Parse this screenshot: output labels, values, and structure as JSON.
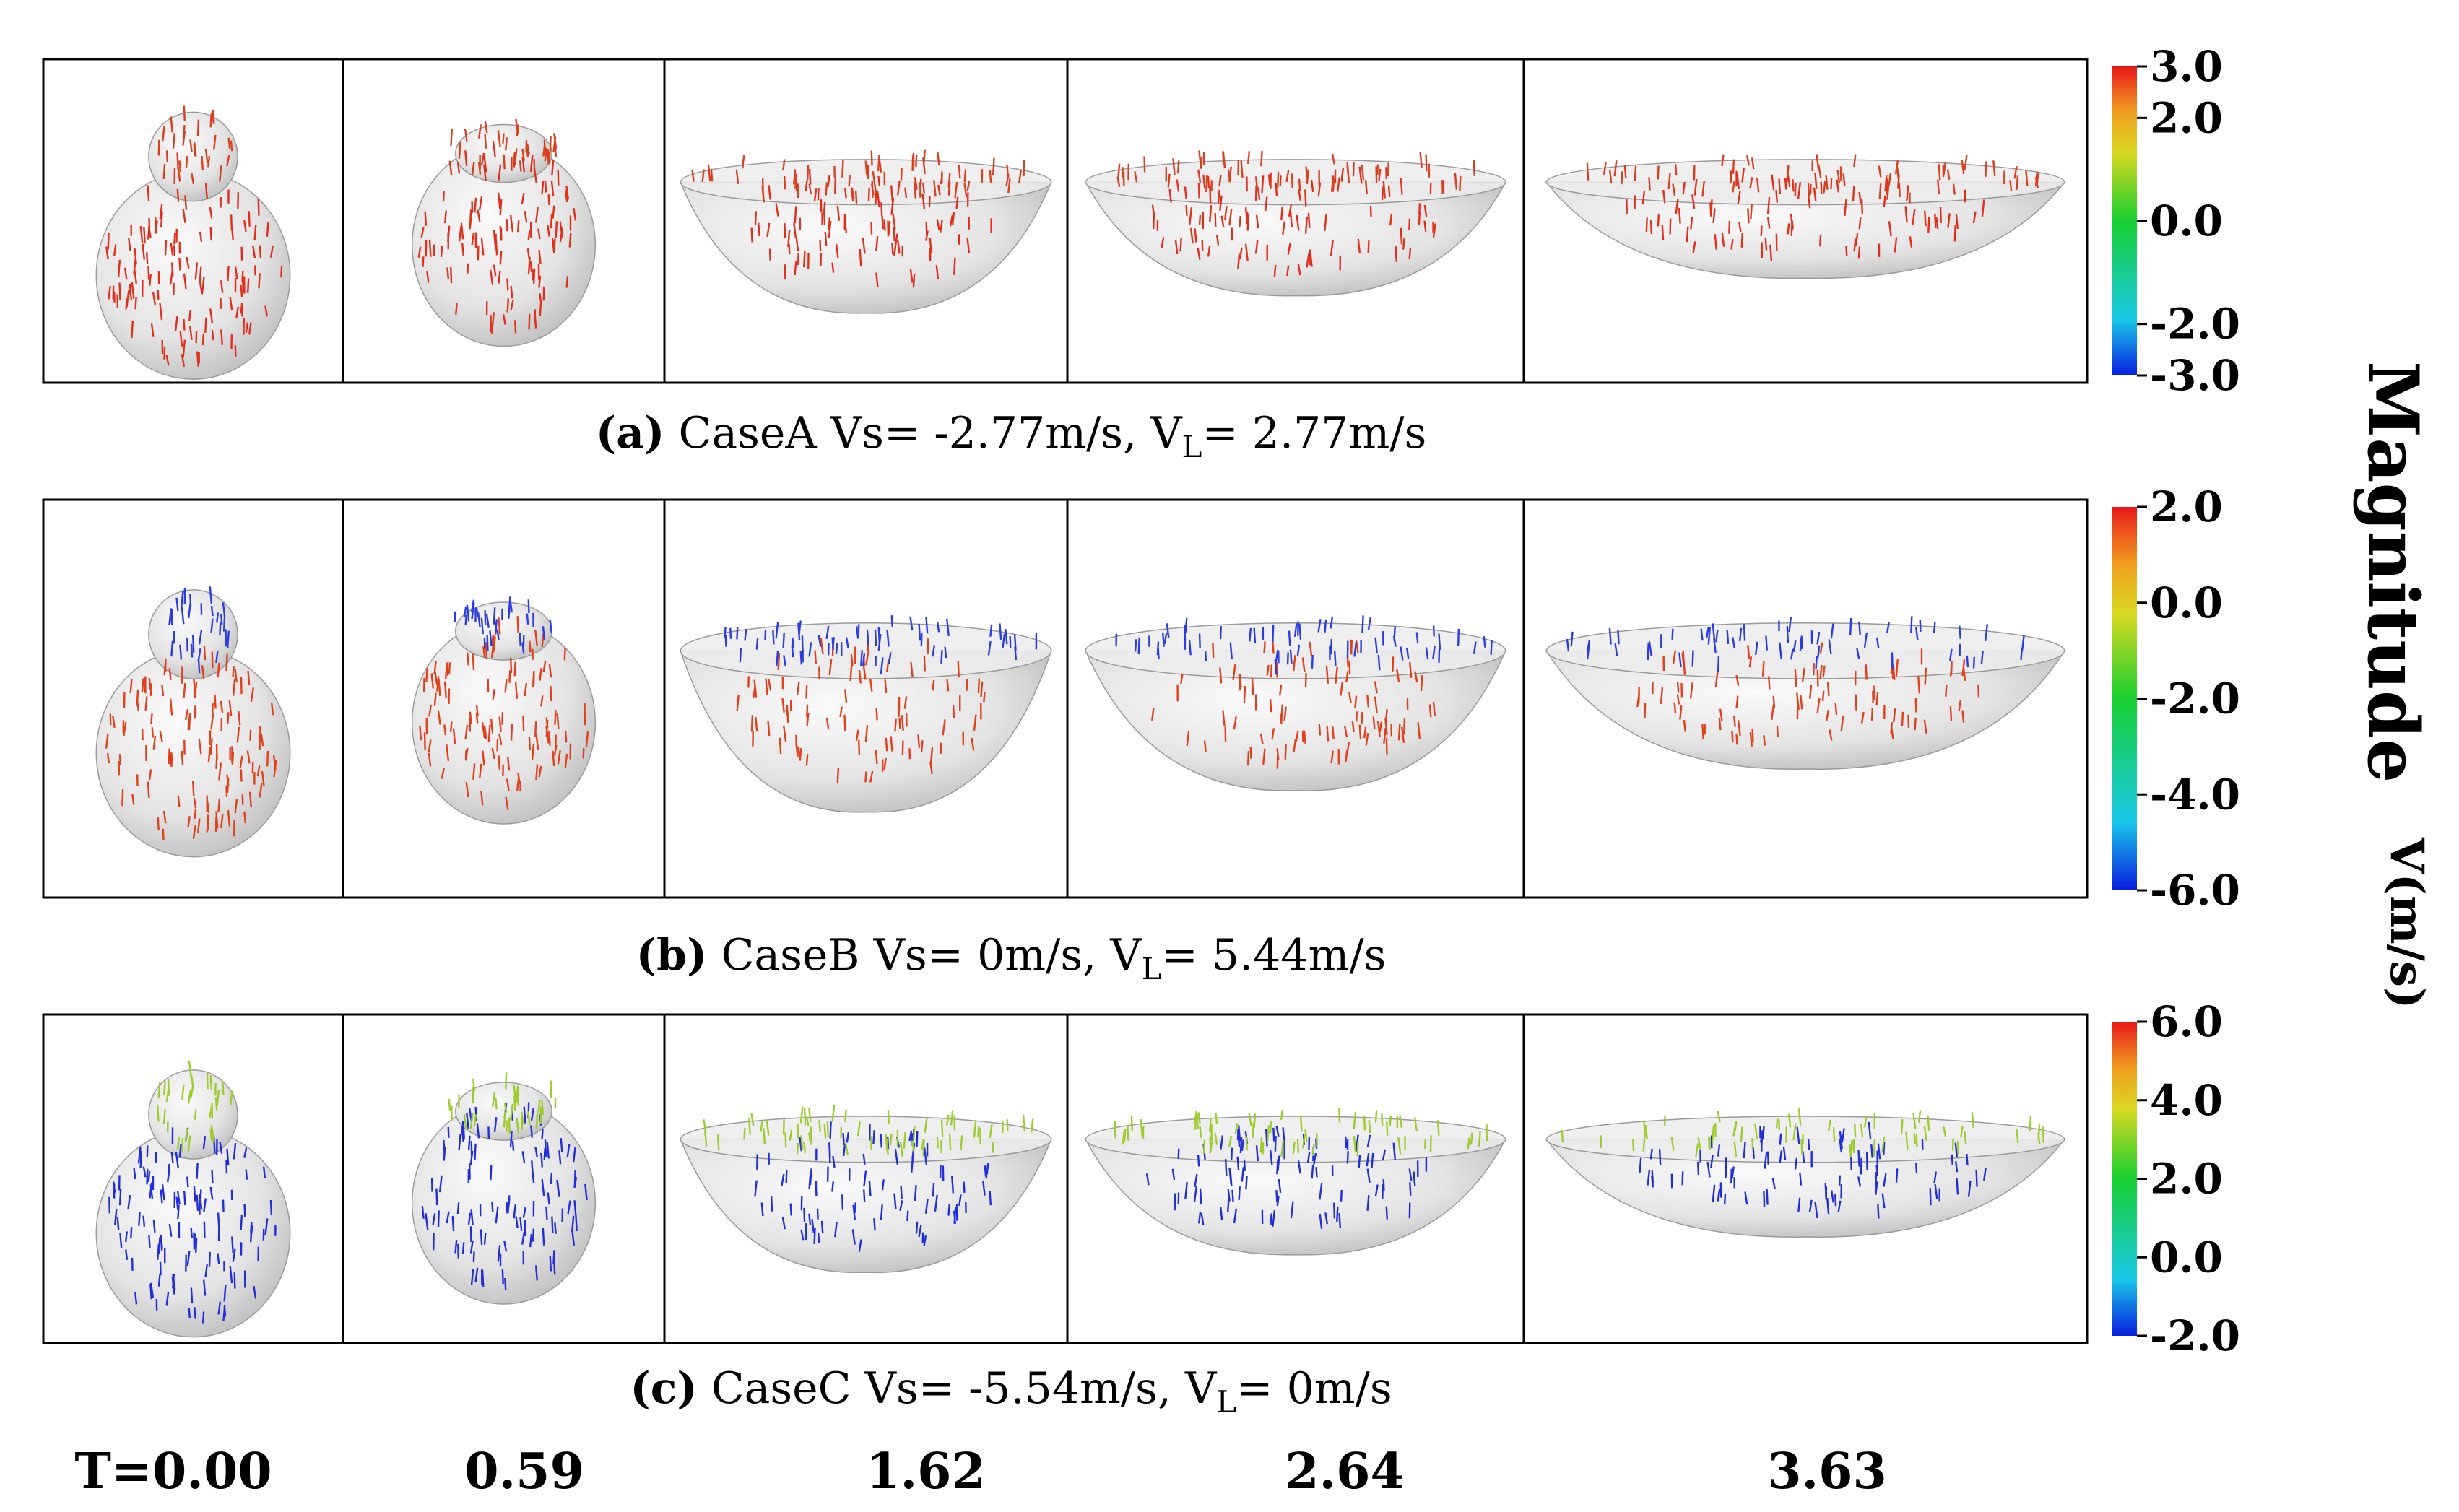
{
  "figure": {
    "rows": [
      {
        "id": "a",
        "letter": "(a)",
        "caption": "CaseA Vs= -2.77m/s, V",
        "sub": "L",
        "caption_end": "= 2.77m/s",
        "arrow_color_lower": "#e0301c",
        "arrow_color_upper": "#d84020",
        "colorbar": {
          "ticks": [
            "3.0",
            "2.0",
            "0.0",
            "-2.0",
            "-3.0"
          ],
          "values": [
            3.0,
            2.0,
            0.0,
            -2.0,
            -3.0
          ],
          "min": -3.0,
          "max": 3.0
        }
      },
      {
        "id": "b",
        "letter": "(b)",
        "caption": "CaseB Vs= 0m/s, V",
        "sub": "L",
        "caption_end": "= 5.44m/s",
        "arrow_color_lower": "#e0401c",
        "arrow_color_upper": "#2a3ee0",
        "colorbar": {
          "ticks": [
            "2.0",
            "0.0",
            "-2.0",
            "-4.0",
            "-6.0"
          ],
          "values": [
            2.0,
            0.0,
            -2.0,
            -4.0,
            -6.0
          ],
          "min": -6.0,
          "max": 2.0
        }
      },
      {
        "id": "c",
        "letter": "(c)",
        "caption": "CaseC Vs= -5.54m/s, V",
        "sub": "L",
        "caption_end": "= 0m/s",
        "arrow_color_lower": "#2030d8",
        "arrow_color_upper": "#9ccc30",
        "colorbar": {
          "ticks": [
            "6.0",
            "4.0",
            "2.0",
            "0.0",
            "-2.0"
          ],
          "values": [
            6.0,
            4.0,
            2.0,
            0.0,
            -2.0
          ],
          "min": -2.0,
          "max": 6.0
        }
      }
    ],
    "time_labels": [
      "T=0.00",
      "0.59",
      "1.62",
      "2.64",
      "3.63"
    ],
    "legend_title": "Magnitude",
    "legend_unit": "V(m/s)"
  }
}
